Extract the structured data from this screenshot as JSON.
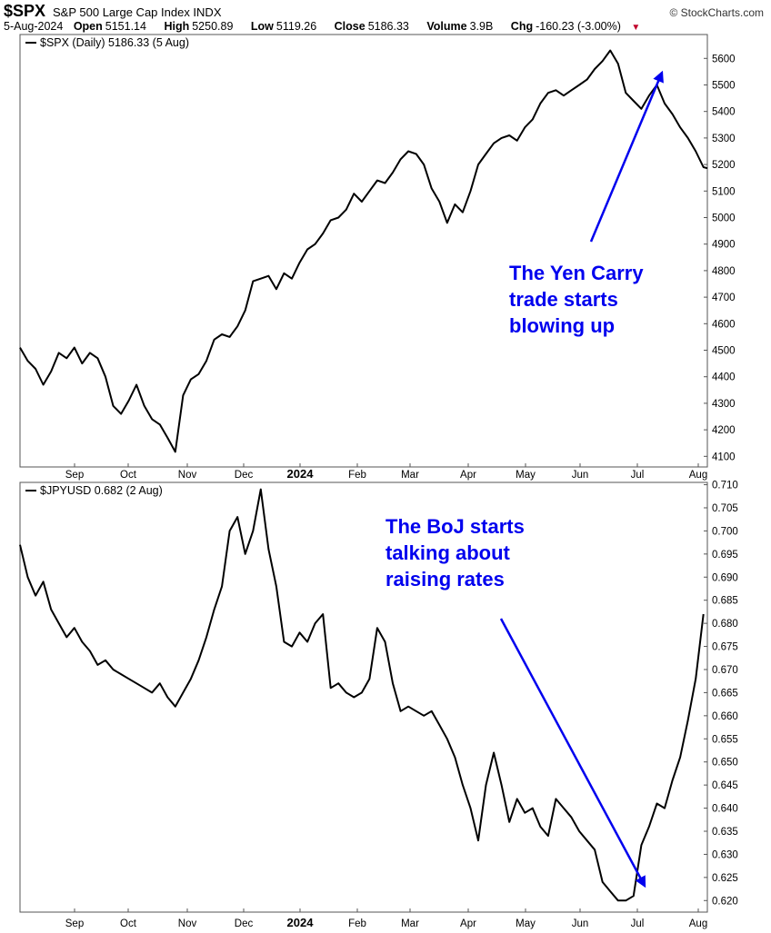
{
  "header": {
    "symbol": "$SPX",
    "name": "S&P 500 Large Cap Index INDX",
    "brand": "© StockCharts.com",
    "date": "5-Aug-2024",
    "open_label": "Open",
    "open": "5151.14",
    "high_label": "High",
    "high": "5250.89",
    "low_label": "Low",
    "low": "5119.26",
    "close_label": "Close",
    "close": "5186.33",
    "volume_label": "Volume",
    "volume": "3.9B",
    "chg_label": "Chg",
    "chg": "-160.23 (-3.00%)",
    "chg_icon": "down-triangle-icon",
    "down_color": "#c0002a"
  },
  "annotation_color": "#0000ee",
  "x_tick_labels": [
    "Sep",
    "Oct",
    "Nov",
    "Dec",
    "2024",
    "Feb",
    "Mar",
    "Apr",
    "May",
    "Jun",
    "Jul",
    "Aug"
  ],
  "chart_data": [
    {
      "type": "line",
      "legend": "$SPX (Daily) 5186.33 (5 Aug)",
      "ylim": [
        4060,
        5690
      ],
      "yticks": [
        4100,
        4200,
        4300,
        4400,
        4500,
        4600,
        4700,
        4800,
        4900,
        5000,
        5100,
        5200,
        5300,
        5400,
        5500,
        5600
      ],
      "grid": false,
      "annotation": "The Yen Carry trade starts blowing up",
      "annotation_lines": [
        "The Yen Carry",
        "trade starts",
        "blowing up"
      ],
      "series": [
        {
          "x": [
            0,
            4,
            8,
            12,
            16,
            20,
            24,
            28,
            32,
            36,
            40,
            44,
            48,
            52,
            56,
            60,
            64,
            68,
            72,
            76,
            80,
            84,
            88,
            92,
            96,
            100,
            104,
            108,
            112,
            116,
            120,
            124,
            128,
            132,
            136,
            140,
            144,
            148,
            152,
            156,
            160,
            164,
            168,
            172,
            176,
            180,
            184,
            188,
            192,
            196,
            200,
            204,
            208,
            212,
            216,
            220,
            224,
            228,
            232,
            236,
            240,
            244,
            248,
            252,
            256,
            260,
            264,
            268,
            272,
            276,
            280,
            284,
            288,
            292,
            296,
            300,
            304,
            308,
            312,
            316,
            320,
            324,
            328,
            332,
            336,
            340,
            344,
            348,
            352,
            354
          ],
          "values": [
            4510,
            4460,
            4430,
            4370,
            4420,
            4490,
            4470,
            4510,
            4450,
            4490,
            4470,
            4400,
            4290,
            4260,
            4310,
            4370,
            4290,
            4240,
            4220,
            4170,
            4117,
            4330,
            4390,
            4410,
            4460,
            4540,
            4560,
            4550,
            4590,
            4650,
            4760,
            4770,
            4780,
            4730,
            4790,
            4770,
            4830,
            4880,
            4900,
            4940,
            4990,
            5000,
            5030,
            5090,
            5060,
            5100,
            5140,
            5130,
            5170,
            5220,
            5250,
            5240,
            5200,
            5110,
            5060,
            4980,
            5050,
            5020,
            5100,
            5200,
            5240,
            5280,
            5300,
            5310,
            5290,
            5340,
            5370,
            5430,
            5470,
            5480,
            5460,
            5480,
            5500,
            5520,
            5560,
            5590,
            5630,
            5580,
            5470,
            5440,
            5410,
            5460,
            5500,
            5430,
            5390,
            5340,
            5300,
            5250,
            5190,
            5186
          ]
        }
      ]
    },
    {
      "type": "line",
      "legend": "$JPYUSD 0.682 (2 Aug)",
      "ylim": [
        0.6175,
        0.7105
      ],
      "yticks": [
        0.62,
        0.625,
        0.63,
        0.635,
        0.64,
        0.645,
        0.65,
        0.655,
        0.66,
        0.665,
        0.67,
        0.675,
        0.68,
        0.685,
        0.69,
        0.695,
        0.7,
        0.705,
        0.71
      ],
      "grid": false,
      "annotation": "The BoJ starts talking about raising rates",
      "annotation_lines": [
        "The BoJ starts",
        "talking about",
        "raising rates"
      ],
      "series": [
        {
          "x": [
            0,
            4,
            8,
            12,
            16,
            20,
            24,
            28,
            32,
            36,
            40,
            44,
            48,
            52,
            56,
            60,
            64,
            68,
            72,
            76,
            80,
            84,
            88,
            92,
            96,
            100,
            104,
            108,
            112,
            116,
            120,
            124,
            128,
            132,
            136,
            140,
            144,
            148,
            152,
            156,
            160,
            164,
            168,
            172,
            176,
            180,
            184,
            188,
            192,
            196,
            200,
            204,
            208,
            212,
            216,
            220,
            224,
            228,
            232,
            236,
            240,
            244,
            248,
            252,
            256,
            260,
            264,
            268,
            272,
            276,
            280,
            284,
            288,
            292,
            296,
            300,
            304,
            308,
            312,
            316,
            320,
            324,
            328,
            332,
            336,
            340,
            344,
            348,
            352
          ],
          "values": [
            0.697,
            0.69,
            0.686,
            0.689,
            0.683,
            0.68,
            0.677,
            0.679,
            0.676,
            0.674,
            0.671,
            0.672,
            0.67,
            0.669,
            0.668,
            0.667,
            0.666,
            0.665,
            0.667,
            0.664,
            0.662,
            0.665,
            0.668,
            0.672,
            0.677,
            0.683,
            0.688,
            0.7,
            0.703,
            0.695,
            0.7,
            0.709,
            0.696,
            0.688,
            0.676,
            0.675,
            0.678,
            0.676,
            0.68,
            0.682,
            0.666,
            0.667,
            0.665,
            0.664,
            0.665,
            0.668,
            0.679,
            0.676,
            0.667,
            0.661,
            0.662,
            0.661,
            0.66,
            0.661,
            0.658,
            0.655,
            0.651,
            0.645,
            0.64,
            0.633,
            0.645,
            0.652,
            0.645,
            0.637,
            0.642,
            0.639,
            0.64,
            0.636,
            0.634,
            0.642,
            0.64,
            0.638,
            0.635,
            0.633,
            0.631,
            0.624,
            0.622,
            0.62,
            0.62,
            0.621,
            0.632,
            0.636,
            0.641,
            0.64,
            0.646,
            0.651,
            0.659,
            0.668,
            0.682
          ]
        }
      ]
    }
  ]
}
